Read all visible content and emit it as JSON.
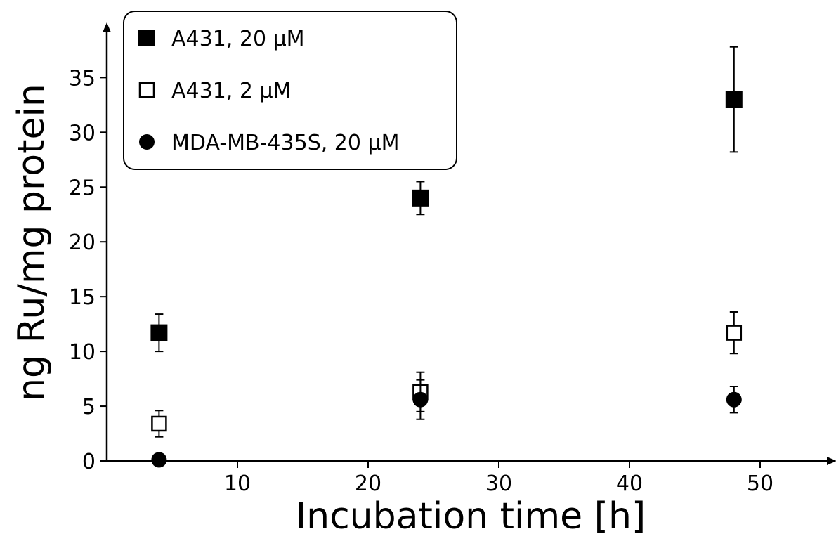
{
  "chart_data": {
    "type": "scatter",
    "xlabel": "Incubation time [h]",
    "ylabel": "ng Ru/mg protein",
    "xlim": [
      0,
      55
    ],
    "ylim": [
      0,
      39
    ],
    "x_ticks": [
      10,
      20,
      30,
      40,
      50
    ],
    "y_ticks": [
      0,
      5,
      10,
      15,
      20,
      25,
      30,
      35
    ],
    "x_tick_labels": [
      "10",
      "20",
      "30",
      "40",
      "50"
    ],
    "y_tick_labels": [
      "0",
      "5",
      "10",
      "15",
      "20",
      "25",
      "30",
      "35"
    ],
    "grid": false,
    "legend_position": "top-left",
    "series": [
      {
        "name": "A431, 20 µM",
        "marker": "filled-square",
        "color": "#000000",
        "x": [
          4,
          24,
          48
        ],
        "y": [
          11.7,
          24.0,
          33.0
        ],
        "err": [
          1.7,
          1.5,
          4.8
        ]
      },
      {
        "name": "A431, 2 µM",
        "marker": "open-square",
        "color": "#000000",
        "x": [
          4,
          24,
          48
        ],
        "y": [
          3.4,
          6.3,
          11.7
        ],
        "err": [
          1.2,
          1.8,
          1.9
        ]
      },
      {
        "name": "MDA-MB-435S, 20 µM",
        "marker": "filled-circle",
        "color": "#000000",
        "x": [
          4,
          24,
          48
        ],
        "y": [
          0.1,
          5.6,
          5.6
        ],
        "err": [
          0,
          1.8,
          1.2
        ]
      }
    ]
  }
}
